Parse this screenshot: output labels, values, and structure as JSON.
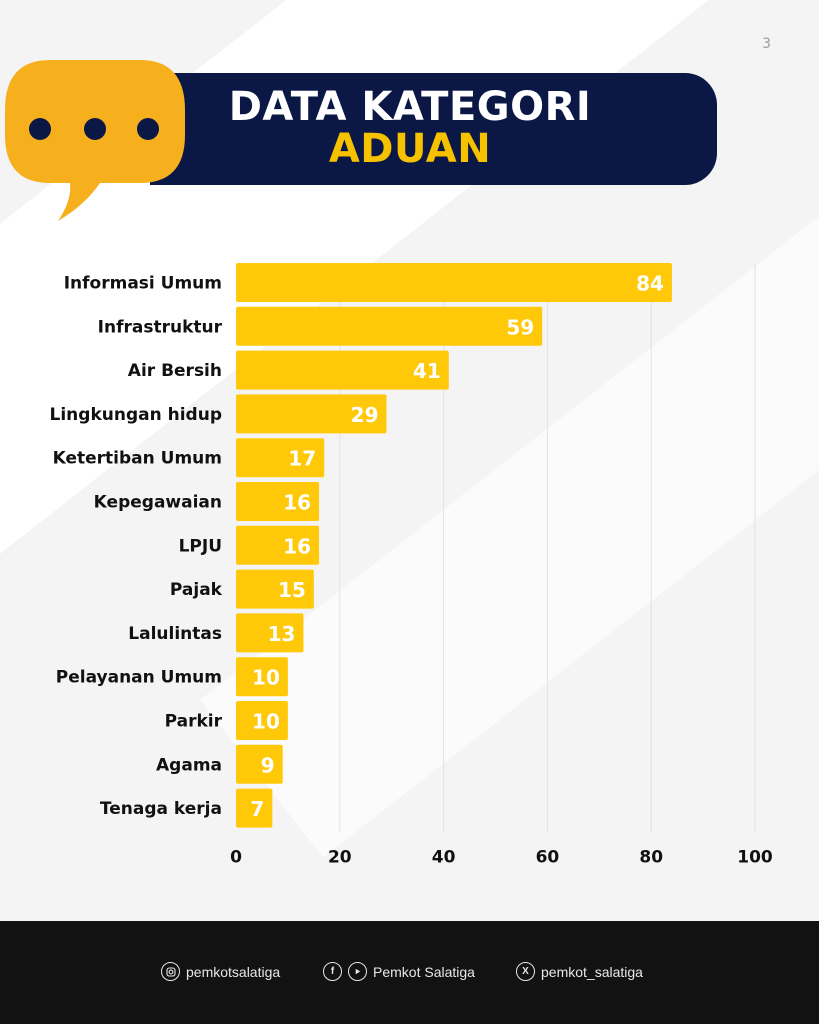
{
  "page_number": "3",
  "header": {
    "title_line1": "DATA KATEGORI",
    "title_line2": "ADUAN"
  },
  "colors": {
    "bar": "#ffc90a",
    "header_bg": "#0b1845",
    "accent": "#f6c200",
    "bubble": "#f6b01d",
    "footer_bg": "#121212"
  },
  "chart_data": {
    "type": "bar",
    "orientation": "horizontal",
    "categories": [
      "Informasi Umum",
      "Infrastruktur",
      "Air Bersih",
      "Lingkungan hidup",
      "Ketertiban Umum",
      "Kepegawaian",
      "LPJU",
      "Pajak",
      "Lalulintas",
      "Pelayanan Umum",
      "Parkir",
      "Agama",
      "Tenaga kerja"
    ],
    "values": [
      84,
      59,
      41,
      29,
      17,
      16,
      16,
      15,
      13,
      10,
      10,
      9,
      7
    ],
    "xlim": [
      0,
      100
    ],
    "xticks": [
      0,
      20,
      40,
      60,
      80,
      100
    ],
    "grid": true,
    "data_labels": true
  },
  "footer": {
    "instagram_icon": "instagram-icon",
    "instagram": "pemkotsalatiga",
    "facebook_icon": "facebook-icon",
    "youtube_icon": "youtube-icon",
    "facebook_youtube": "Pemkot Salatiga",
    "x_icon": "x-icon",
    "x": "pemkot_salatiga"
  }
}
